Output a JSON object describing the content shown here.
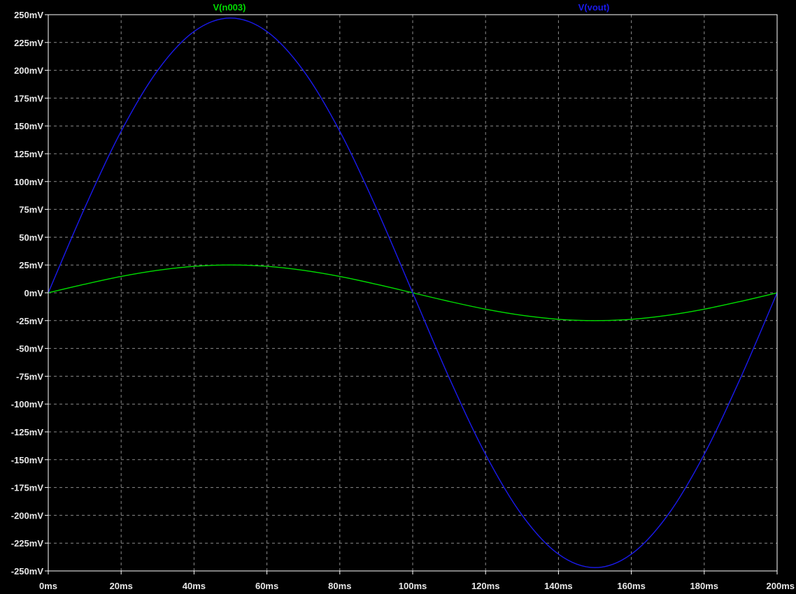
{
  "theme": {
    "background": "#000000",
    "axis_color": "#ffffff",
    "grid_color": "#8a8a8a",
    "tick_label_color": "#e8e8e8"
  },
  "chart_data": {
    "type": "line",
    "grid": true,
    "grid_style": "dashed",
    "legend_position": "top",
    "x_unit": "ms",
    "y_unit": "mV",
    "xlim": [
      0,
      200
    ],
    "ylim": [
      -250,
      250
    ],
    "x_ticks": [
      0,
      20,
      40,
      60,
      80,
      100,
      120,
      140,
      160,
      180,
      200
    ],
    "x_tick_labels": [
      "0ms",
      "20ms",
      "40ms",
      "60ms",
      "80ms",
      "100ms",
      "120ms",
      "140ms",
      "160ms",
      "180ms",
      "200ms"
    ],
    "y_ticks": [
      250,
      225,
      200,
      175,
      150,
      125,
      100,
      75,
      50,
      25,
      0,
      -25,
      -50,
      -75,
      -100,
      -125,
      -150,
      -175,
      -200,
      -225,
      -250
    ],
    "y_tick_labels": [
      "250mV",
      "225mV",
      "200mV",
      "175mV",
      "150mV",
      "125mV",
      "100mV",
      "75mV",
      "50mV",
      "25mV",
      "0mV",
      "-25mV",
      "-50mV",
      "-75mV",
      "-100mV",
      "-125mV",
      "-150mV",
      "-175mV",
      "-200mV",
      "-225mV",
      "-250mV"
    ],
    "series": [
      {
        "name": "V(n003)",
        "color": "#00dd00",
        "x": [
          0,
          10,
          20,
          30,
          40,
          50,
          60,
          70,
          80,
          90,
          100,
          110,
          120,
          130,
          140,
          150,
          160,
          170,
          180,
          190,
          200
        ],
        "y": [
          0,
          7.7,
          14.7,
          20.2,
          23.8,
          25,
          23.8,
          20.2,
          14.7,
          7.7,
          0,
          -7.7,
          -14.7,
          -20.2,
          -23.8,
          -25,
          -23.8,
          -20.2,
          -14.7,
          -7.7,
          0
        ]
      },
      {
        "name": "V(vout)",
        "color": "#1a1aee",
        "x": [
          0,
          10,
          20,
          30,
          40,
          50,
          60,
          70,
          80,
          90,
          100,
          110,
          120,
          130,
          140,
          150,
          160,
          170,
          180,
          190,
          200
        ],
        "y": [
          0,
          76.3,
          145.2,
          199.8,
          234.9,
          247,
          234.9,
          199.8,
          145.2,
          76.3,
          0,
          -76.3,
          -145.2,
          -199.8,
          -234.9,
          -247,
          -234.9,
          -199.8,
          -145.2,
          -76.3,
          0
        ]
      }
    ]
  }
}
